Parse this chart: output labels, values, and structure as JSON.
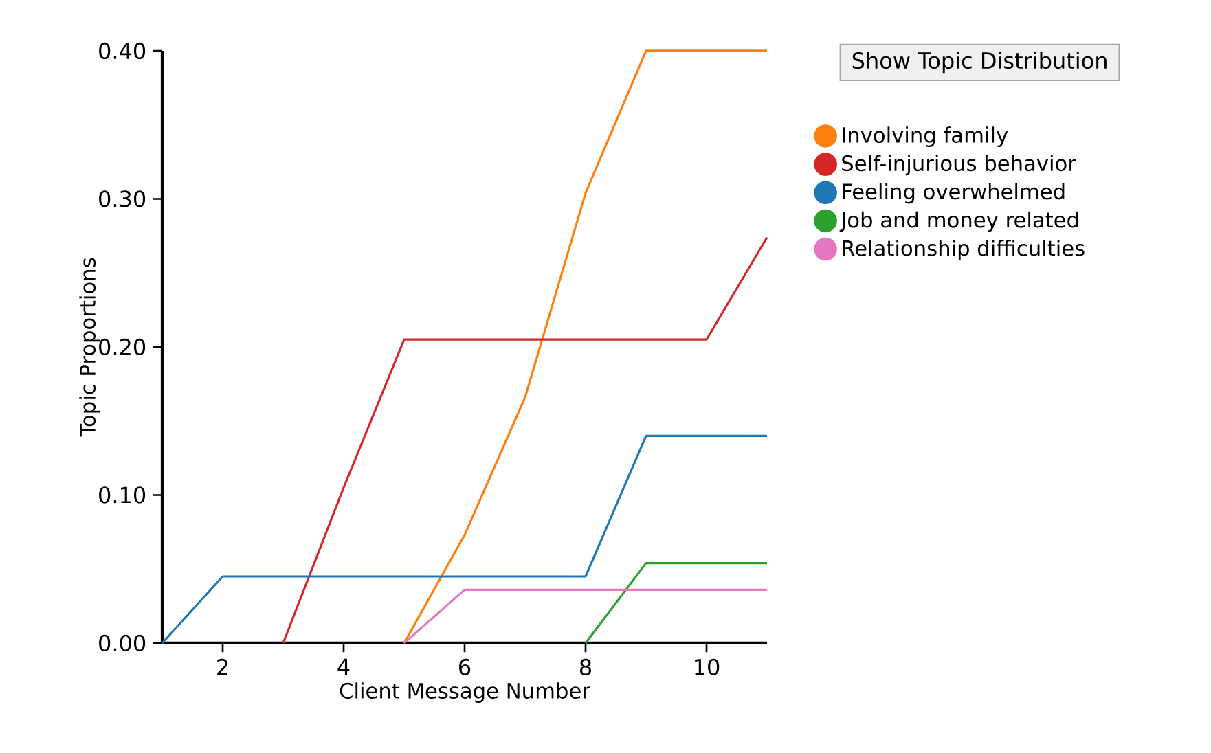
{
  "chart_data": {
    "type": "line",
    "xlabel": "Client Message Number",
    "ylabel": "Topic Proportions",
    "annotations": [
      "Show Topic Distribution"
    ],
    "xlim": [
      1,
      11
    ],
    "xticks": [
      2,
      4,
      6,
      8,
      10
    ],
    "ylim": [
      0,
      0.4
    ],
    "yticks": [
      {
        "value": 0,
        "label": "0.00"
      },
      {
        "value": 0.1,
        "label": "0.10"
      },
      {
        "value": 0.2,
        "label": "0.20"
      },
      {
        "value": 0.3,
        "label": "0.30"
      },
      {
        "value": 0.4,
        "label": "0.40"
      }
    ],
    "legend": "top right",
    "series": [
      {
        "name": "Involving family",
        "color": "#ff7f0e",
        "x": [
          5,
          6,
          7,
          8,
          9,
          10,
          11
        ],
        "values": [
          0,
          0.073,
          0.166,
          0.304,
          0.4,
          0.4,
          0.4
        ]
      },
      {
        "name": "Self-injurious behavior",
        "color": "#d62728",
        "x": [
          3,
          4,
          5,
          6,
          7,
          8,
          9,
          10,
          11
        ],
        "values": [
          0,
          0.105,
          0.205,
          0.205,
          0.205,
          0.205,
          0.205,
          0.205,
          0.274
        ]
      },
      {
        "name": "Feeling overwhelmed",
        "color": "#1f77b4",
        "x": [
          1,
          2,
          3,
          4,
          5,
          6,
          7,
          8,
          9,
          10,
          11
        ],
        "values": [
          0,
          0.045,
          0.045,
          0.045,
          0.045,
          0.045,
          0.045,
          0.045,
          0.14,
          0.14,
          0.14
        ]
      },
      {
        "name": "Job and money related",
        "color": "#2ca02c",
        "x": [
          8,
          9,
          10,
          11
        ],
        "values": [
          0,
          0.054,
          0.054,
          0.054
        ]
      },
      {
        "name": "Relationship difficulties",
        "color": "#e377c2",
        "x": [
          5,
          6,
          7,
          8,
          9,
          10,
          11
        ],
        "values": [
          0,
          0.036,
          0.036,
          0.036,
          0.036,
          0.036,
          0.036
        ]
      }
    ]
  }
}
